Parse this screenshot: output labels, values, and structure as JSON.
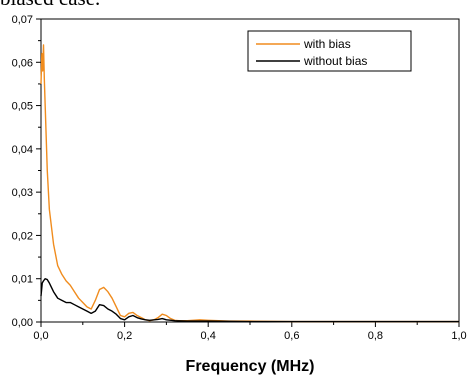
{
  "caption_fragment": "biased case.",
  "chart_data": {
    "type": "line",
    "title": "",
    "xlabel": "Frequency (MHz)",
    "ylabel": "",
    "xlim": [
      0.0,
      1.0
    ],
    "ylim": [
      0.0,
      0.07
    ],
    "x_ticks": [
      0.0,
      0.2,
      0.4,
      0.6,
      0.8,
      1.0
    ],
    "x_tick_labels": [
      "0,0",
      "0,2",
      "0,4",
      "0,6",
      "0,8",
      "1,0"
    ],
    "y_ticks": [
      0.0,
      0.01,
      0.02,
      0.03,
      0.04,
      0.05,
      0.06,
      0.07
    ],
    "y_tick_labels": [
      "0,00",
      "0,01",
      "0,02",
      "0,03",
      "0,04",
      "0,05",
      "0,06",
      "0,07"
    ],
    "grid": false,
    "legend_position": "top-right",
    "series": [
      {
        "name": "with bias",
        "color": "#f08c1e",
        "x": [
          0.0,
          0.002,
          0.004,
          0.006,
          0.008,
          0.01,
          0.015,
          0.02,
          0.03,
          0.04,
          0.05,
          0.06,
          0.07,
          0.08,
          0.09,
          0.1,
          0.11,
          0.12,
          0.13,
          0.14,
          0.15,
          0.16,
          0.17,
          0.18,
          0.19,
          0.2,
          0.21,
          0.22,
          0.23,
          0.24,
          0.25,
          0.26,
          0.27,
          0.28,
          0.29,
          0.3,
          0.31,
          0.32,
          0.33,
          0.35,
          0.38,
          0.4,
          0.45,
          0.5,
          0.6,
          0.7,
          0.8,
          0.9,
          1.0
        ],
        "y": [
          0.055,
          0.062,
          0.058,
          0.064,
          0.056,
          0.05,
          0.035,
          0.026,
          0.018,
          0.013,
          0.011,
          0.0095,
          0.0085,
          0.007,
          0.0055,
          0.0045,
          0.0035,
          0.003,
          0.005,
          0.0075,
          0.008,
          0.007,
          0.0055,
          0.0035,
          0.0015,
          0.0012,
          0.002,
          0.0022,
          0.0015,
          0.001,
          0.0005,
          0.0003,
          0.0005,
          0.001,
          0.0018,
          0.0015,
          0.0008,
          0.0004,
          0.0003,
          0.0003,
          0.0005,
          0.0004,
          0.0002,
          0.0002,
          0.0001,
          0.0001,
          0.0001,
          0.0001,
          0.0001
        ]
      },
      {
        "name": "without bias",
        "color": "#000000",
        "x": [
          0.0,
          0.003,
          0.006,
          0.01,
          0.015,
          0.02,
          0.03,
          0.04,
          0.05,
          0.06,
          0.07,
          0.08,
          0.09,
          0.1,
          0.11,
          0.12,
          0.13,
          0.14,
          0.15,
          0.16,
          0.17,
          0.18,
          0.19,
          0.2,
          0.21,
          0.22,
          0.23,
          0.24,
          0.25,
          0.26,
          0.28,
          0.29,
          0.3,
          0.32,
          0.35,
          0.4,
          0.5,
          0.6,
          0.7,
          0.8,
          0.9,
          1.0
        ],
        "y": [
          0.006,
          0.009,
          0.0095,
          0.01,
          0.0098,
          0.009,
          0.007,
          0.0055,
          0.005,
          0.0045,
          0.0045,
          0.004,
          0.0035,
          0.003,
          0.0025,
          0.002,
          0.0025,
          0.004,
          0.0038,
          0.003,
          0.0025,
          0.0018,
          0.0008,
          0.0005,
          0.0012,
          0.0015,
          0.001,
          0.0007,
          0.0005,
          0.0004,
          0.0006,
          0.0008,
          0.0005,
          0.0003,
          0.0002,
          0.0002,
          0.0001,
          0.0001,
          0.0001,
          0.0001,
          0.0001,
          0.0001
        ]
      }
    ]
  }
}
